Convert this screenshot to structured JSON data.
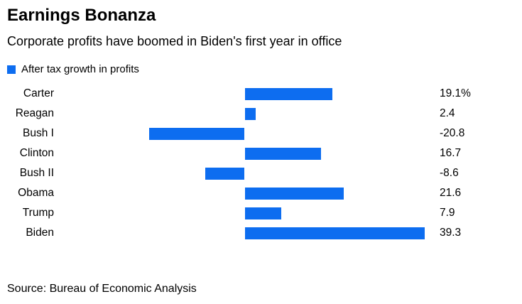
{
  "header": {
    "title": "Earnings Bonanza",
    "subtitle": "Corporate profits have boomed in Biden's first year in office"
  },
  "legend": {
    "label": "After tax growth in profits"
  },
  "chart_data": {
    "type": "bar",
    "orientation": "horizontal",
    "title": "Earnings Bonanza",
    "subtitle": "Corporate profits have boomed in Biden's first year in office",
    "legend": [
      "After tax growth in profits"
    ],
    "legend_position": "top-left",
    "categories": [
      "Carter",
      "Reagan",
      "Bush I",
      "Clinton",
      "Bush II",
      "Obama",
      "Trump",
      "Biden"
    ],
    "values": [
      19.1,
      2.4,
      -20.8,
      16.7,
      -8.6,
      21.6,
      7.9,
      39.3
    ],
    "value_labels": [
      "19.1%",
      "2.4",
      "-20.8",
      "16.7",
      "-8.6",
      "21.6",
      "7.9",
      "39.3"
    ],
    "xlim": [
      -40,
      40
    ],
    "grid": false,
    "bar_color": "#0d6df0"
  },
  "source": {
    "text": "Source: Bureau of Economic Analysis"
  }
}
